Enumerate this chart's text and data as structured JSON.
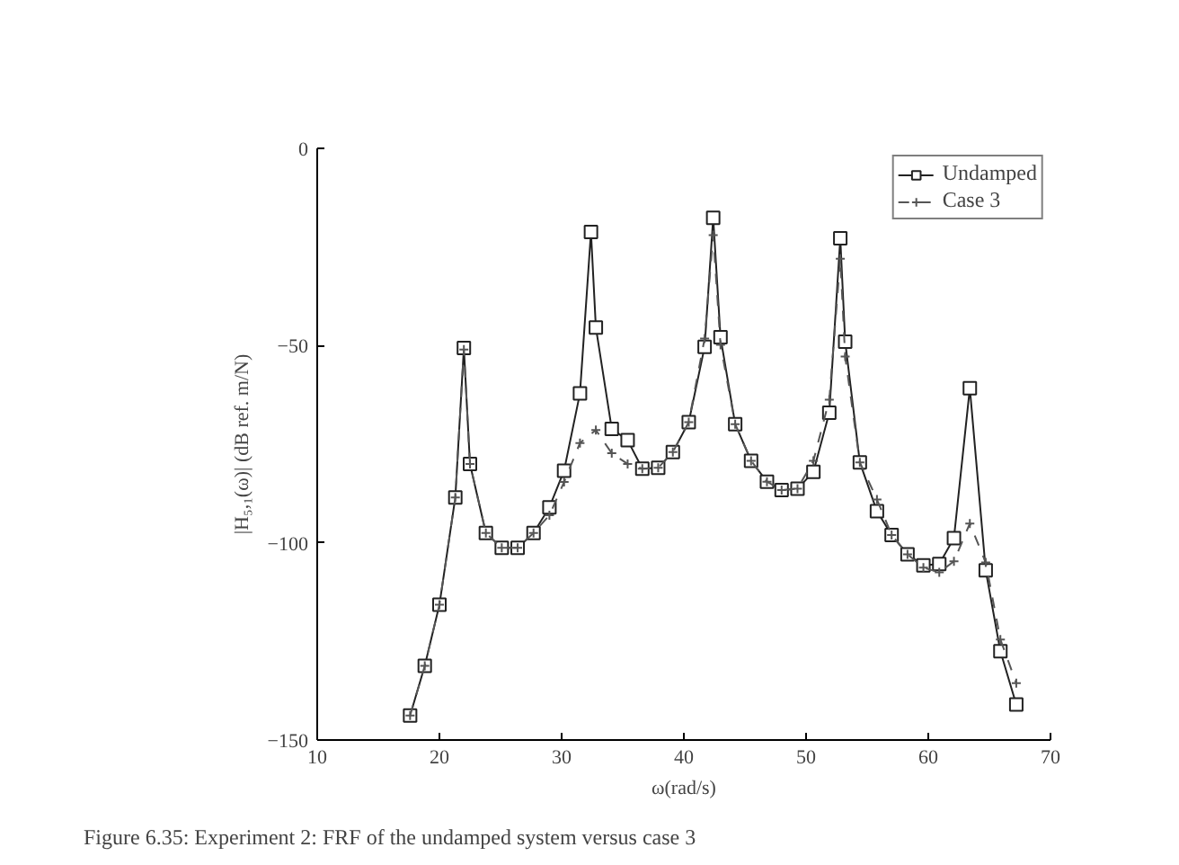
{
  "chart_data": {
    "type": "line",
    "xlabel": "ω(rad/s)",
    "ylabel": "|H₅,₁(ω)| (dB ref. m/N)",
    "xlim": [
      10,
      70
    ],
    "xticks": [
      10,
      20,
      30,
      40,
      50,
      60,
      70
    ],
    "ylim": [
      -150,
      0
    ],
    "yticks": [
      -150,
      -100,
      -50,
      0
    ],
    "grid": false,
    "legend": "top right",
    "annotations": [
      "Figure 6.35: Experiment 2: FRF of the undamped system versus case 3"
    ],
    "series": [
      {
        "name": "Undamped",
        "color": "#222222",
        "marker": "square",
        "line_style": "solid",
        "x": [
          17.6,
          18.8,
          20.0,
          21.3,
          22.0,
          22.5,
          23.8,
          25.1,
          26.4,
          27.7,
          29.0,
          30.2,
          31.5,
          32.4,
          32.8,
          34.1,
          35.4,
          36.6,
          37.9,
          39.1,
          40.4,
          41.7,
          42.4,
          43.0,
          44.2,
          45.5,
          46.8,
          48.0,
          49.3,
          50.6,
          51.9,
          52.8,
          53.2,
          54.4,
          55.8,
          57.0,
          58.3,
          59.6,
          60.9,
          62.1,
          63.4,
          64.7,
          65.9,
          67.2
        ],
        "values": [
          -143.8,
          -131.2,
          -115.7,
          -88.5,
          -50.6,
          -80,
          -97.5,
          -101.3,
          -101.3,
          -97.5,
          -91,
          -81.7,
          -62.1,
          -21.2,
          -45.4,
          -71.1,
          -74,
          -81.2,
          -81,
          -77,
          -69.4,
          -50.3,
          -17.6,
          -47.9,
          -69.9,
          -79.2,
          -84.5,
          -86.6,
          -86.3,
          -82,
          -67,
          -22.8,
          -49,
          -79.6,
          -92,
          -98,
          -102.9,
          -105.7,
          -105.4,
          -98.8,
          -60.8,
          -107,
          -127.5,
          -141
        ]
      },
      {
        "name": "Case 3",
        "color": "#555555",
        "marker": "cross",
        "line_style": "dashed",
        "x": [
          17.6,
          18.8,
          20.0,
          21.3,
          22.0,
          22.5,
          23.8,
          25.1,
          26.4,
          27.7,
          29.0,
          30.2,
          31.5,
          32.8,
          34.1,
          35.4,
          36.6,
          37.9,
          39.1,
          40.4,
          41.7,
          42.4,
          43.0,
          44.2,
          45.5,
          46.8,
          48.0,
          49.3,
          50.6,
          51.9,
          52.8,
          53.2,
          54.4,
          55.8,
          57.0,
          58.3,
          59.6,
          60.9,
          62.1,
          63.4,
          64.7,
          65.9,
          67.2
        ],
        "values": [
          -143.8,
          -131.2,
          -115.7,
          -88.5,
          -51,
          -80,
          -97.5,
          -101.3,
          -101.3,
          -97.5,
          -93,
          -84.6,
          -74.7,
          -71.4,
          -77.3,
          -80,
          -81.2,
          -81,
          -77,
          -69.4,
          -48.2,
          -22,
          -49.8,
          -69.9,
          -79.2,
          -84.5,
          -86.6,
          -86.3,
          -79.2,
          -63.7,
          -28,
          -52.8,
          -79.6,
          -89,
          -98,
          -102.9,
          -106.3,
          -107.5,
          -104.7,
          -95.1,
          -105,
          -124.5,
          -135.6
        ]
      }
    ]
  }
}
